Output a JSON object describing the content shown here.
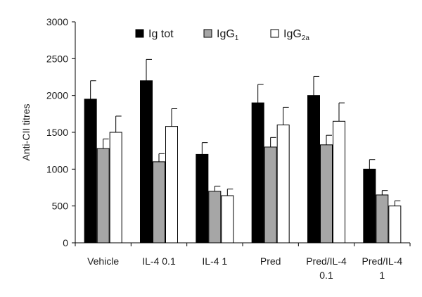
{
  "chart_data": {
    "type": "bar",
    "title": "",
    "xlabel": "",
    "ylabel": "Anti-CII titres",
    "ylim": [
      0,
      3000
    ],
    "yticks": [
      0,
      500,
      1000,
      1500,
      2000,
      2500,
      3000
    ],
    "categories": [
      [
        "Vehicle"
      ],
      [
        "IL-4 0.1"
      ],
      [
        "IL-4 1"
      ],
      [
        "Pred"
      ],
      [
        "Pred/IL-4",
        "0.1"
      ],
      [
        "Pred/IL-4",
        "1"
      ]
    ],
    "series": [
      {
        "name": "Ig tot",
        "base": "Ig tot",
        "sub": "",
        "color": "#000000",
        "values": [
          1950,
          2200,
          1200,
          1900,
          2000,
          1000
        ],
        "errors": [
          250,
          290,
          160,
          250,
          260,
          130
        ]
      },
      {
        "name": "IgG1",
        "base": "IgG",
        "sub": "1",
        "color": "#a6a6a6",
        "values": [
          1280,
          1100,
          700,
          1300,
          1330,
          650
        ],
        "errors": [
          130,
          110,
          70,
          130,
          130,
          60
        ]
      },
      {
        "name": "IgG2a",
        "base": "IgG",
        "sub": "2a",
        "color": "#ffffff",
        "values": [
          1500,
          1580,
          640,
          1600,
          1650,
          500
        ],
        "errors": [
          220,
          240,
          90,
          240,
          250,
          70
        ]
      }
    ],
    "legend_position": "top"
  }
}
